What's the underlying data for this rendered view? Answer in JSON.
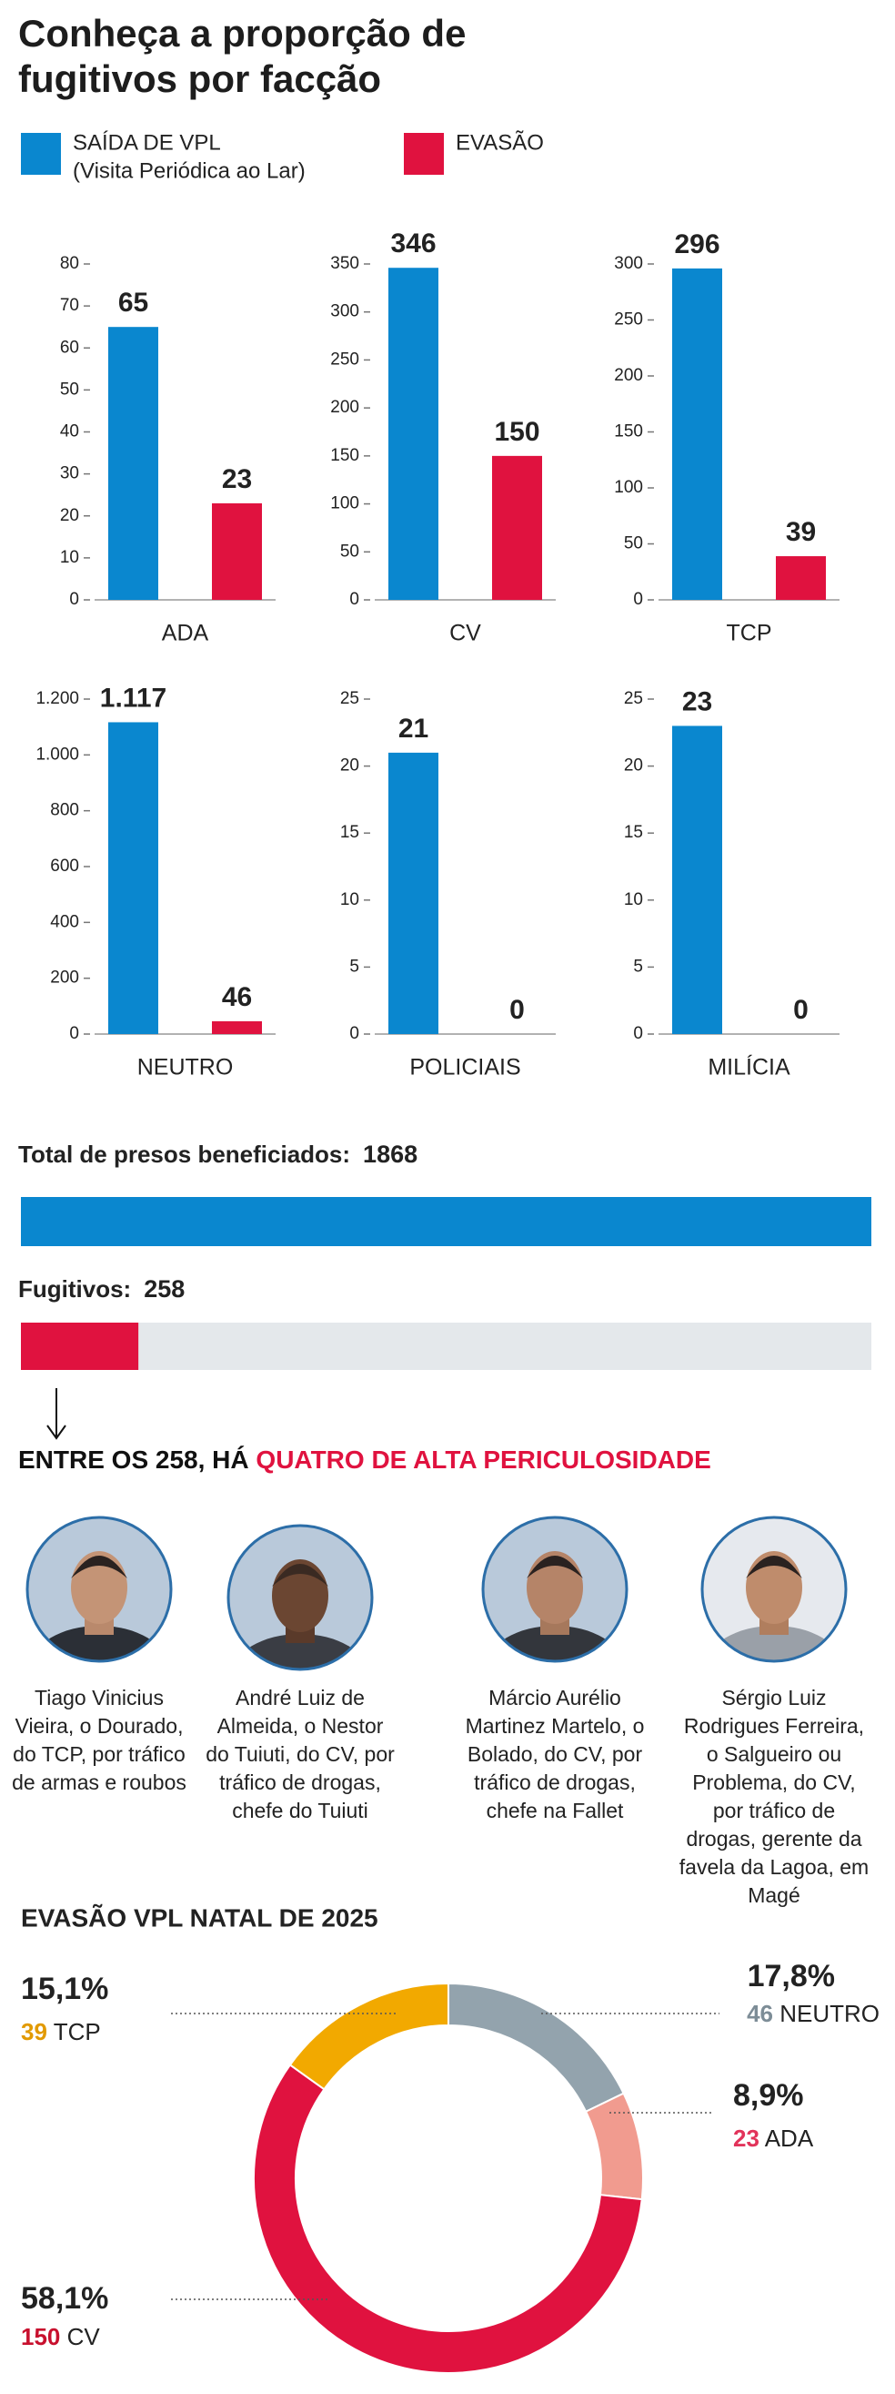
{
  "chart_data": [
    {
      "type": "bar",
      "title": "Conheça a proporção de fugitivos por facção",
      "categories": [
        "ADA",
        "CV",
        "TCP",
        "NEUTRO",
        "POLICIAIS",
        "MILÍCIA"
      ],
      "series": [
        {
          "name": "SAÍDA DE VPL",
          "name_note": "(Visita Periódica ao Lar)",
          "color": "#0a87cf",
          "values": [
            65,
            346,
            296,
            1117,
            21,
            23
          ],
          "value_labels": [
            "65",
            "346",
            "296",
            "1.117",
            "21",
            "23"
          ]
        },
        {
          "name": "EVASÃO",
          "color": "#e0123f",
          "values": [
            23,
            150,
            39,
            46,
            0,
            0
          ]
        }
      ],
      "panels": [
        {
          "ylim": [
            0,
            80
          ],
          "yticks": [
            0,
            10,
            20,
            30,
            40,
            50,
            60,
            70,
            80
          ]
        },
        {
          "ylim": [
            0,
            350
          ],
          "yticks": [
            0,
            50,
            100,
            150,
            200,
            250,
            300,
            350
          ]
        },
        {
          "ylim": [
            0,
            300
          ],
          "yticks": [
            0,
            50,
            100,
            150,
            200,
            250,
            300
          ]
        },
        {
          "ylim": [
            0,
            1200
          ],
          "yticks": [
            0,
            200,
            400,
            600,
            800,
            {
              "value": 1000,
              "label": "1.000"
            },
            {
              "value": 1200,
              "label": "1.200"
            }
          ]
        },
        {
          "ylim": [
            0,
            25
          ],
          "yticks": [
            0,
            5,
            10,
            15,
            20,
            25
          ]
        },
        {
          "ylim": [
            0,
            25
          ],
          "yticks": [
            0,
            5,
            10,
            15,
            20,
            25
          ]
        }
      ]
    },
    {
      "type": "progress",
      "categories": [
        "Total de presos beneficiados:",
        "Fugitivos:"
      ],
      "values": [
        1868,
        258
      ],
      "colors": [
        "#0a87cf",
        "#e0123f"
      ],
      "xlim": [
        0,
        1868
      ]
    },
    {
      "type": "pie",
      "title": "EVASÃO VPL NATAL DE 2025",
      "categories": [
        "NEUTRO",
        "ADA",
        "CV",
        "TCP"
      ],
      "values": [
        17.8,
        8.9,
        58.1,
        15.1
      ],
      "value_labels": [
        "17,8%",
        "8,9%",
        "58,1%",
        "15,1%"
      ],
      "counts": [
        46,
        23,
        150,
        39
      ],
      "colors": [
        "#93a3ad",
        "#f19b8f",
        "#e0123f",
        "#f2a900"
      ]
    }
  ],
  "headline": {
    "text": "ENTRE OS 258, HÁ",
    "highlight": "QUATRO DE ALTA PERICULOSIDADE"
  },
  "people": [
    "Tiago Vinicius Vieira, o Dourado, do TCP, por tráfico de armas e roubos",
    "André Luiz de Almeida, o Nestor do Tuiuti, do CV, por tráfico de drogas, chefe do Tuiuti",
    "Márcio Aurélio Martinez Martelo, o Bolado, do CV, por tráfico de drogas, chefe na Fallet",
    "Sérgio Luiz Rodrigues Ferreira, o Salgueiro ou Problema, do CV, por tráfico de drogas, gerente da favela da Lagoa, em Magé"
  ]
}
